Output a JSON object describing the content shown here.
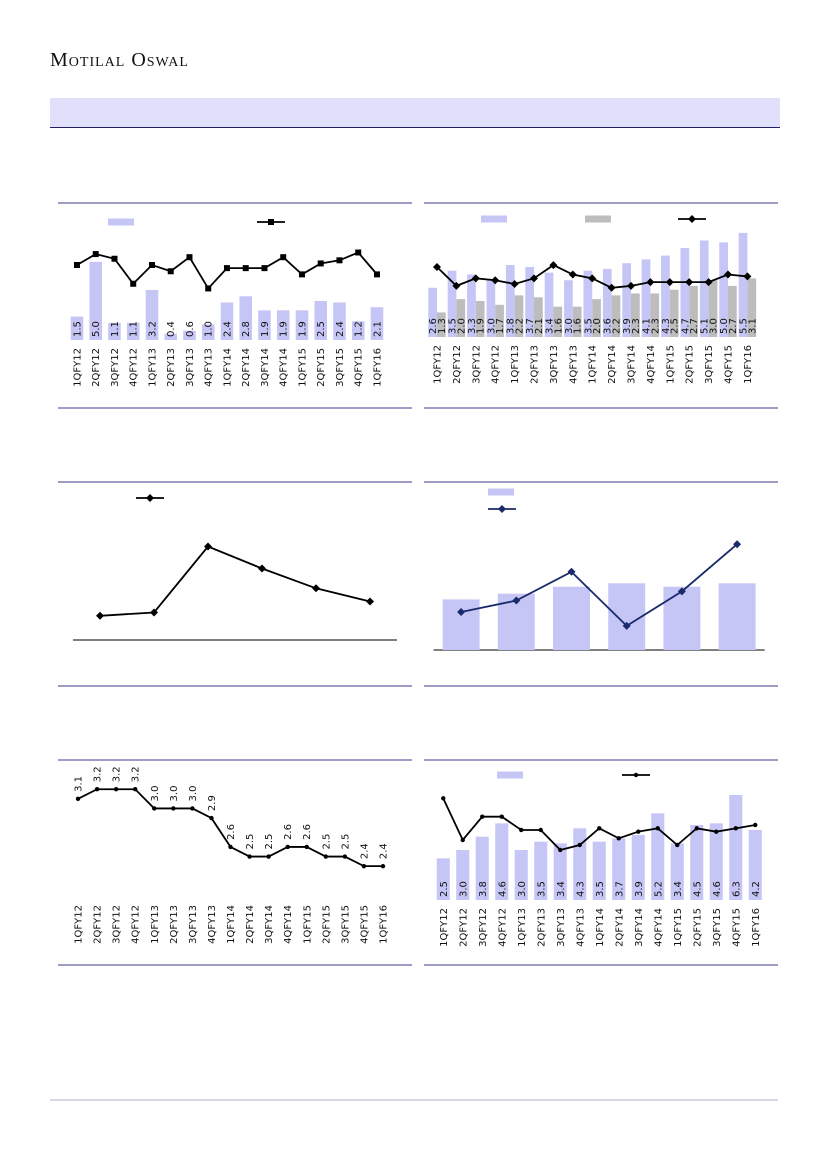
{
  "header": {
    "brand": "Motilal Oswal"
  },
  "chart_data": [
    {
      "type": "bar_line",
      "ylim": [
        0,
        6.4
      ],
      "categories": [
        "1QFY12",
        "2QFY12",
        "3QFY12",
        "4QFY12",
        "1QFY13",
        "2QFY13",
        "3QFY13",
        "4QFY13",
        "1QFY14",
        "2QFY14",
        "3QFY14",
        "4QFY14",
        "1QFY15",
        "2QFY15",
        "3QFY15",
        "4QFY15",
        "1QFY16"
      ],
      "series": [
        {
          "type": "bar",
          "color": "#c6c6f6",
          "values": [
            1.5,
            5,
            1.1,
            1.1,
            3.2,
            0.4,
            0.6,
            1,
            2.4,
            2.8,
            1.9,
            1.9,
            1.9,
            2.5,
            2.4,
            1.2,
            2.1
          ],
          "value_labels": [
            "1.5",
            "5.0",
            "1.1",
            "1.1",
            "3.2",
            "0.4",
            "0.6",
            "1.0",
            "2.4",
            "2.8",
            "1.9",
            "1.9",
            "1.9",
            "2.5",
            "2.4",
            "1.2",
            "2.1"
          ]
        },
        {
          "type": "line",
          "marker": "square",
          "color": "#000000",
          "values": [
            4.8,
            5.5,
            5.2,
            3.6,
            4.8,
            4.4,
            5.3,
            3.3,
            4.6,
            4.6,
            4.6,
            5.3,
            4.2,
            4.9,
            5.1,
            5.6,
            4.2
          ]
        }
      ]
    },
    {
      "type": "bar_line",
      "ylim": [
        0,
        5.6
      ],
      "categories": [
        "1QFY12",
        "2QFY12",
        "3QFY12",
        "4QFY12",
        "1QFY13",
        "2QFY13",
        "3QFY13",
        "4QFY13",
        "1QFY14",
        "2QFY14",
        "3QFY14",
        "4QFY14",
        "1QFY15",
        "2QFY15",
        "3QFY15",
        "4QFY15",
        "1QFY16"
      ],
      "series": [
        {
          "type": "bar",
          "color": "#c6c6f6",
          "values": [
            2.6,
            3.5,
            3.3,
            3,
            3.8,
            3.7,
            3.4,
            3,
            3.5,
            3.6,
            3.9,
            4.1,
            4.3,
            4.7,
            5.1,
            5,
            5.5
          ],
          "value_labels": [
            "2.6",
            "3.5",
            "3.3",
            "3.0",
            "3.8",
            "3.7",
            "3.4",
            "3.0",
            "3.5",
            "3.6",
            "3.9",
            "4.1",
            "4.3",
            "4.7",
            "5.1",
            "5.0",
            "5.5"
          ]
        },
        {
          "type": "bar",
          "color": "#bdbdbd",
          "values": [
            1.3,
            2,
            1.9,
            1.7,
            2.2,
            2.1,
            1.6,
            1.6,
            2,
            2.2,
            2.3,
            2.3,
            2.5,
            2.7,
            3,
            2.7,
            3.1
          ],
          "value_labels": [
            "1.3",
            "2.0",
            "1.9",
            "1.7",
            "2.2",
            "2.1",
            "1.6",
            "1.6",
            "2.0",
            "2.2",
            "2.3",
            "2.3",
            "2.5",
            "2.7",
            "3.0",
            "2.7",
            "3.1"
          ]
        },
        {
          "type": "line",
          "marker": "diamond",
          "color": "#000000",
          "values": [
            3.7,
            2.7,
            3.1,
            3,
            2.8,
            3.1,
            3.8,
            3.3,
            3.1,
            2.6,
            2.7,
            2.9,
            2.9,
            2.9,
            2.9,
            3.3,
            3.2
          ]
        }
      ]
    },
    {
      "type": "line",
      "ylim": [
        0,
        100
      ],
      "axis_line": true,
      "categories": [
        null,
        null,
        null,
        null,
        null,
        null
      ],
      "series": [
        {
          "type": "line",
          "marker": "diamond",
          "color": "#000000",
          "values": [
            22,
            25,
            85,
            65,
            47,
            35
          ]
        }
      ]
    },
    {
      "type": "bar_line",
      "ylim": [
        0,
        100
      ],
      "axis_line": true,
      "categories": [
        null,
        null,
        null,
        null,
        null,
        null
      ],
      "series": [
        {
          "type": "bar",
          "color": "#c6c6f6",
          "values": [
            44,
            49,
            55,
            58,
            55,
            58
          ]
        },
        {
          "type": "line",
          "marker": "diamond",
          "color": "#1a2a6a",
          "values": [
            33,
            43,
            68,
            21,
            51,
            92
          ]
        }
      ]
    },
    {
      "type": "line",
      "ylim": [
        2.1,
        3.4
      ],
      "categories": [
        "1QFY12",
        "2QFY12",
        "3QFY12",
        "4QFY12",
        "1QFY13",
        "2QFY13",
        "3QFY13",
        "4QFY13",
        "1QFY14",
        "2QFY14",
        "3QFY14",
        "4QFY14",
        "1QFY15",
        "2QFY15",
        "3QFY15",
        "4QFY15",
        "1QFY16"
      ],
      "series": [
        {
          "type": "line",
          "marker": "dot",
          "color": "#000000",
          "values": [
            3.1,
            3.2,
            3.2,
            3.2,
            3,
            3,
            3,
            2.9,
            2.6,
            2.5,
            2.5,
            2.6,
            2.6,
            2.5,
            2.5,
            2.4,
            2.4
          ],
          "value_labels": [
            "3.1",
            "3.2",
            "3.2",
            "3.2",
            "3.0",
            "3.0",
            "3.0",
            "2.9",
            "2.6",
            "2.5",
            "2.5",
            "2.6",
            "2.6",
            "2.5",
            "2.5",
            "2.4",
            "2.4"
          ]
        }
      ]
    },
    {
      "type": "bar_line",
      "ylim": [
        0,
        6.6
      ],
      "categories": [
        "1QFY12",
        "2QFY12",
        "3QFY12",
        "4QFY12",
        "1QFY13",
        "2QFY13",
        "3QFY13",
        "4QFY13",
        "1QFY14",
        "2QFY14",
        "3QFY14",
        "4QFY14",
        "1QFY15",
        "2QFY15",
        "3QFY15",
        "4QFY15",
        "1QFY16"
      ],
      "series": [
        {
          "type": "bar",
          "color": "#c6c6f6",
          "values": [
            2.5,
            3,
            3.8,
            4.6,
            3,
            3.5,
            3.4,
            4.3,
            3.5,
            3.7,
            3.9,
            5.2,
            3.4,
            4.5,
            4.6,
            6.3,
            4.2
          ],
          "value_labels": [
            "2.5",
            "3.0",
            "3.8",
            "4.6",
            "3.0",
            "3.5",
            "3.4",
            "4.3",
            "3.5",
            "3.7",
            "3.9",
            "5.2",
            "3.4",
            "4.5",
            "4.6",
            "6.3",
            "4.2"
          ]
        },
        {
          "type": "line",
          "marker": "dot",
          "color": "#000000",
          "values": [
            6.1,
            3.6,
            5,
            5,
            4.2,
            4.2,
            3,
            3.3,
            4.3,
            3.7,
            4.1,
            4.3,
            3.3,
            4.3,
            4.1,
            4.3,
            4.5
          ]
        }
      ]
    }
  ]
}
